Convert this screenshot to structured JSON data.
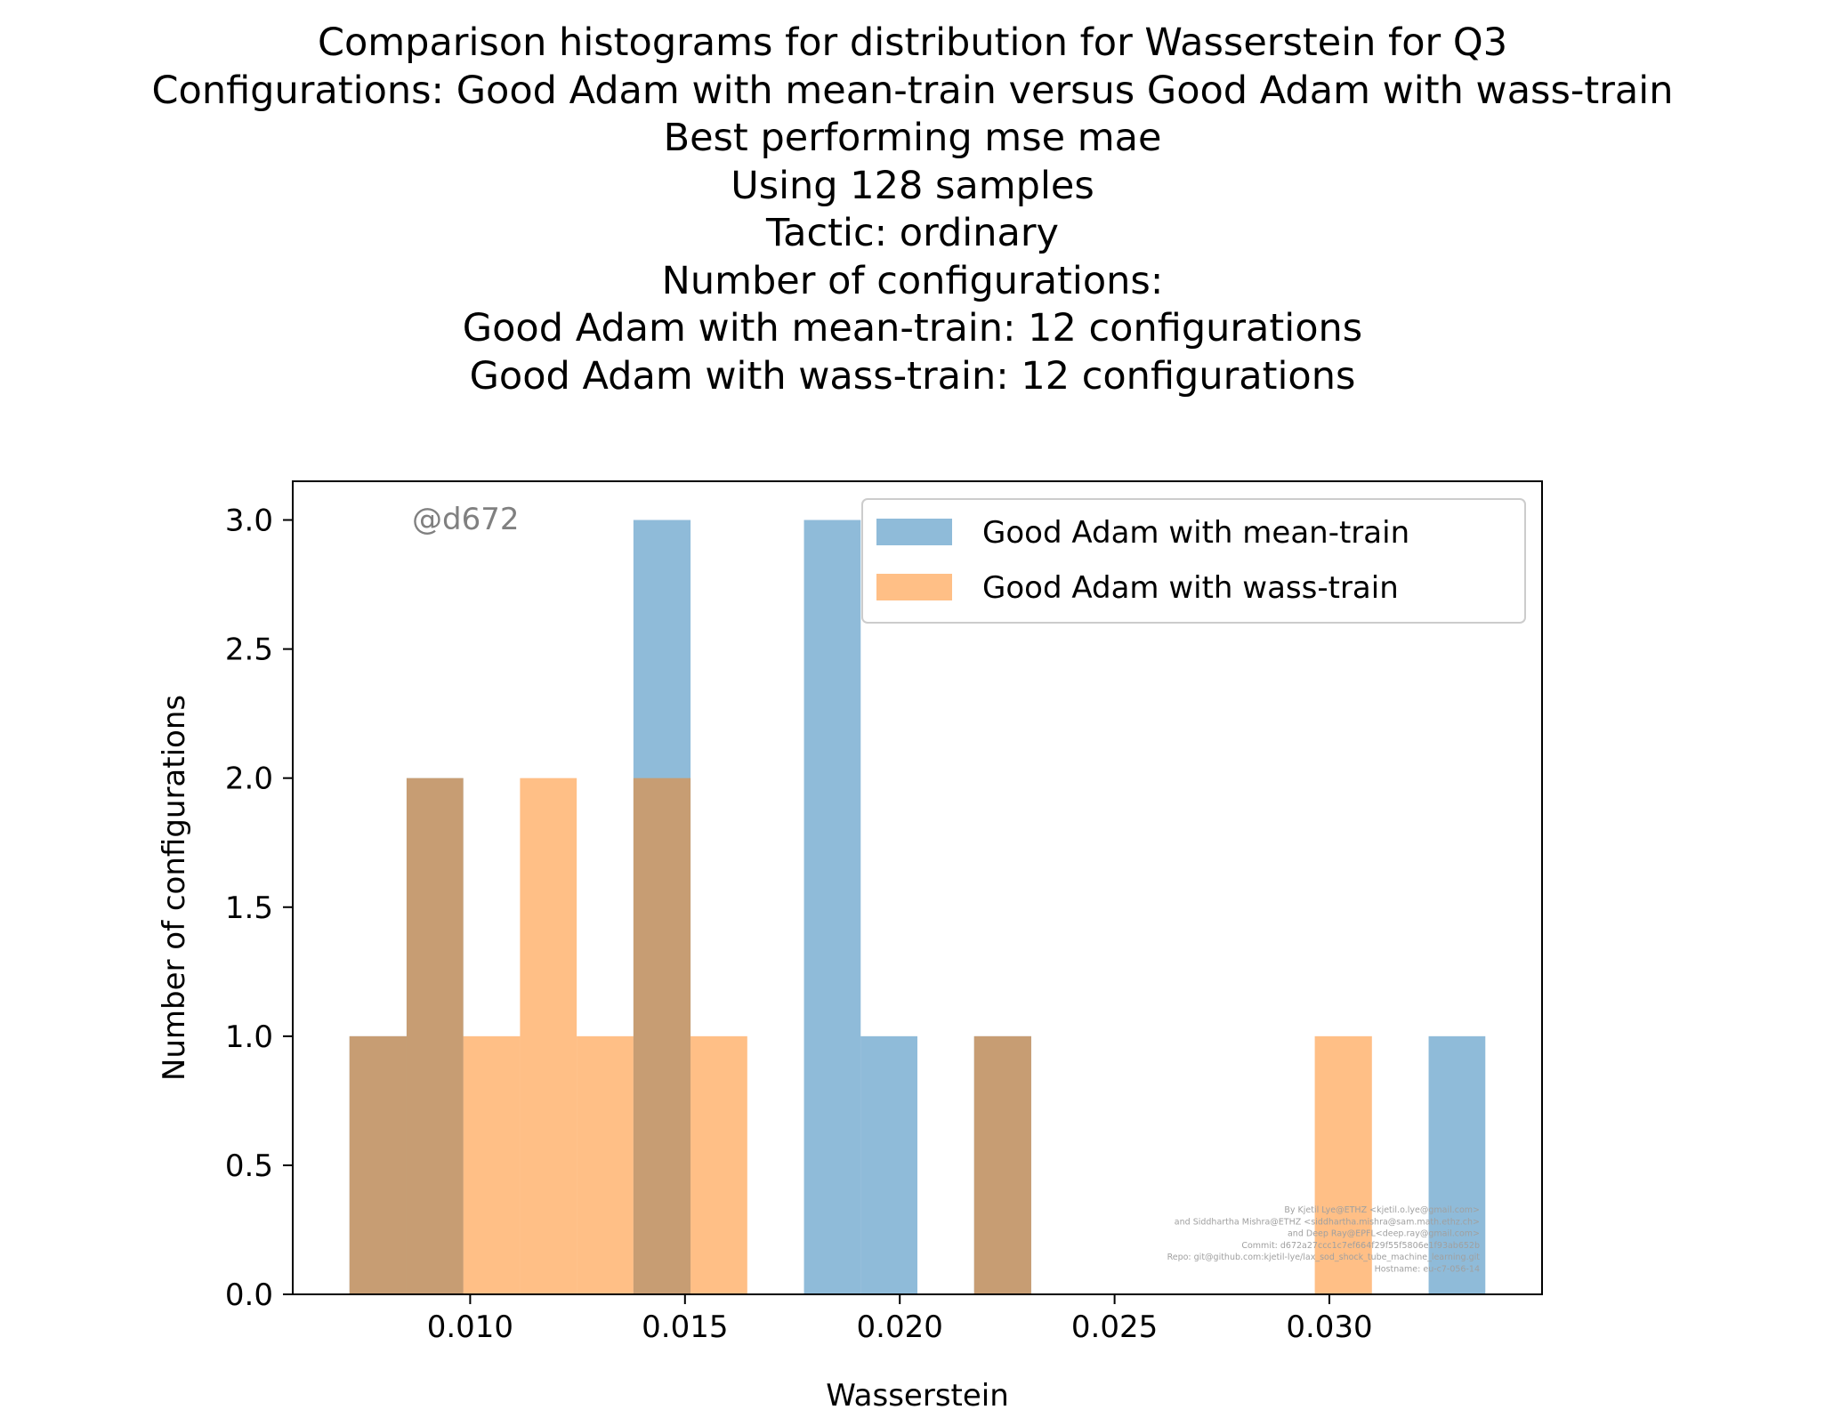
{
  "title_lines": [
    "Comparison histograms for distribution for Wasserstein for Q3",
    "Configurations: Good Adam with mean-train versus Good Adam with wass-train",
    "Best performing mse mae",
    "Using 128 samples",
    "Tactic: ordinary",
    "Number of configurations:",
    "Good Adam with mean-train: 12 configurations",
    "Good Adam with wass-train: 12 configurations"
  ],
  "watermark": "@d672",
  "credits": [
    "By Kjetil Lye@ETHZ <kjetil.o.lye@gmail.com>",
    "and Siddhartha Mishra@ETHZ <siddhartha.mishra@sam.math.ethz.ch>",
    "and Deep Ray@EPFL<deep.ray@gmail.com>",
    "Commit: d672a27ccc1c7ef664f29f55f5806e1f93ab652b",
    "Repo: git@github.com:kjetil-lye/lax_sod_shock_tube_machine_learning.git",
    "Hostname: eu-c7-056-14"
  ],
  "colors": {
    "mean_train": "#1f77b4",
    "wass_train": "#ff7f0e",
    "alpha": 0.5
  },
  "chart_data": {
    "type": "bar",
    "subtype": "overlapping histogram",
    "xlabel": "Wasserstein",
    "ylabel": "Number of configurations",
    "xlim": [
      0.00587,
      0.03495
    ],
    "ylim": [
      0,
      3.15
    ],
    "xticks": [
      0.01,
      0.015,
      0.02,
      0.025,
      0.03
    ],
    "xtick_labels": [
      "0.010",
      "0.015",
      "0.020",
      "0.025",
      "0.030"
    ],
    "yticks": [
      0.0,
      0.5,
      1.0,
      1.5,
      2.0,
      2.5,
      3.0
    ],
    "ytick_labels": [
      "0.0",
      "0.5",
      "1.0",
      "1.5",
      "2.0",
      "2.5",
      "3.0"
    ],
    "grid": false,
    "legend_position": "top-right",
    "series": [
      {
        "name": "Good Adam with mean-train",
        "color": "#1f77b4",
        "bins": [
          [
            0.00719,
            0.00852,
            1
          ],
          [
            0.00852,
            0.00984,
            2
          ],
          [
            0.0138,
            0.01513,
            3
          ],
          [
            0.01777,
            0.01909,
            3
          ],
          [
            0.01909,
            0.02041,
            1
          ],
          [
            0.02173,
            0.02306,
            1
          ],
          [
            0.03231,
            0.03363,
            1
          ]
        ]
      },
      {
        "name": "Good Adam with wass-train",
        "color": "#ff7f0e",
        "bins": [
          [
            0.00719,
            0.00852,
            1
          ],
          [
            0.00852,
            0.00984,
            2
          ],
          [
            0.00984,
            0.01116,
            1
          ],
          [
            0.01116,
            0.01248,
            2
          ],
          [
            0.01248,
            0.0138,
            1
          ],
          [
            0.0138,
            0.01513,
            2
          ],
          [
            0.01513,
            0.01645,
            1
          ],
          [
            0.02173,
            0.02306,
            1
          ],
          [
            0.02966,
            0.03099,
            1
          ]
        ]
      }
    ]
  }
}
